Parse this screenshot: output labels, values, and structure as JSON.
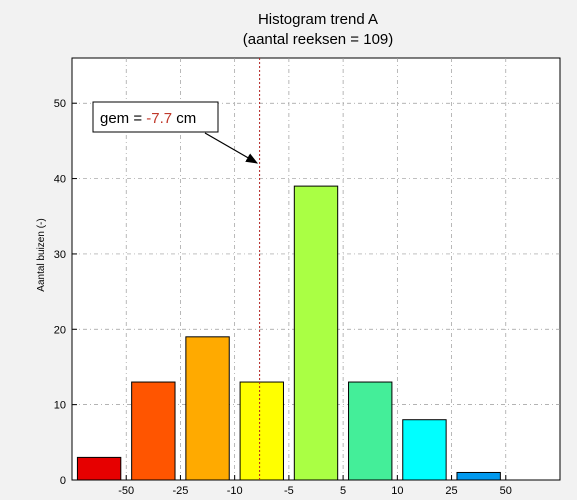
{
  "chart_data": {
    "type": "bar",
    "title": "Histogram trend A",
    "subtitle": "(aantal reeksen = 109)",
    "xlabel": "",
    "ylabel": "Aantal buizen (-)",
    "categories": [
      "< -50",
      "-50 to -25",
      "-25 to -10",
      "-10 to -5",
      "-5 to 5",
      "5 to 10",
      "10 to 25",
      "25 to 50",
      "> 50"
    ],
    "x_tick_labels": [
      "-50",
      "-25",
      "-10",
      "-5",
      "5",
      "10",
      "25",
      "50"
    ],
    "values": [
      3,
      13,
      19,
      13,
      39,
      13,
      8,
      1,
      0
    ],
    "bar_colors": [
      "#e60000",
      "#ff5500",
      "#ffaa00",
      "#ffff00",
      "#aaff44",
      "#44ee99",
      "#00ffff",
      "#0099ee",
      "#0000cc"
    ],
    "ylim": [
      0,
      56
    ],
    "y_ticks": [
      0,
      10,
      20,
      30,
      40,
      50
    ],
    "grid": true,
    "mean_line": {
      "value": -7.7,
      "color": "#b22222",
      "style": "dashed"
    },
    "annotation": {
      "prefix": "gem = ",
      "value": "-7.7",
      "suffix": " cm",
      "value_color": "#c0392b"
    }
  }
}
